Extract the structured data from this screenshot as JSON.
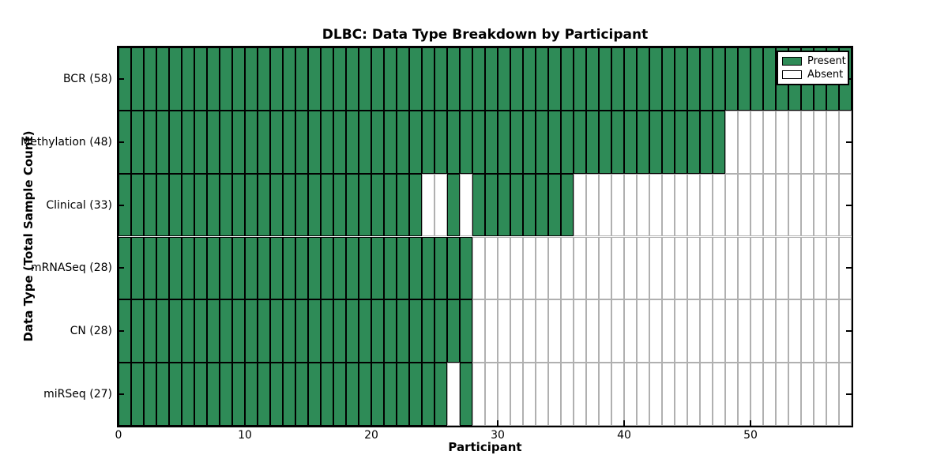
{
  "title": "DLBC: Data Type Breakdown by Participant",
  "xlabel": "Participant",
  "ylabel": "Data Type (Total Sample Count)",
  "legend": {
    "present_label": "Present",
    "absent_label": "Absent"
  },
  "colors": {
    "present": "#2e8b57",
    "absent": "#ffffff",
    "present_edge": "#000000",
    "absent_edge": "#b0b0b0",
    "spine": "#000000"
  },
  "chart_data": {
    "type": "heatmap",
    "title": "DLBC: Data Type Breakdown by Participant",
    "xlabel": "Participant",
    "ylabel": "Data Type (Total Sample Count)",
    "n_participants": 58,
    "x_range": [
      0,
      58
    ],
    "x_ticks": [
      0,
      10,
      20,
      30,
      40,
      50
    ],
    "legend_entries": [
      "Present",
      "Absent"
    ],
    "legend_position": "upper right",
    "cell_states": {
      "present": "1",
      "absent": "0"
    },
    "rows": [
      {
        "label": "BCR (58)",
        "name": "BCR",
        "total_samples": 58,
        "present_ranges": [
          [
            0,
            57
          ]
        ],
        "present_mask": "1111111111111111111111111111111111111111111111111111111111"
      },
      {
        "label": "Methylation (48)",
        "name": "Methylation",
        "total_samples": 48,
        "present_ranges": [
          [
            0,
            47
          ]
        ],
        "present_mask": "1111111111111111111111111111111111111111111111110000000000"
      },
      {
        "label": "Clinical (33)",
        "name": "Clinical",
        "total_samples": 33,
        "present_ranges": [
          [
            0,
            23
          ],
          [
            26,
            26
          ],
          [
            28,
            35
          ]
        ],
        "present_mask": "1111111111111111111111110010111111110000000000000000000000"
      },
      {
        "label": "mRNASeq (28)",
        "name": "mRNASeq",
        "total_samples": 28,
        "present_ranges": [
          [
            0,
            27
          ]
        ],
        "present_mask": "1111111111111111111111111111000000000000000000000000000000"
      },
      {
        "label": "CN (28)",
        "name": "CN",
        "total_samples": 28,
        "present_ranges": [
          [
            0,
            27
          ]
        ],
        "present_mask": "1111111111111111111111111111000000000000000000000000000000"
      },
      {
        "label": "miRSeq (27)",
        "name": "miRSeq",
        "total_samples": 27,
        "present_ranges": [
          [
            0,
            25
          ],
          [
            27,
            27
          ]
        ],
        "present_mask": "1111111111111111111111111101000000000000000000000000000000"
      }
    ]
  }
}
